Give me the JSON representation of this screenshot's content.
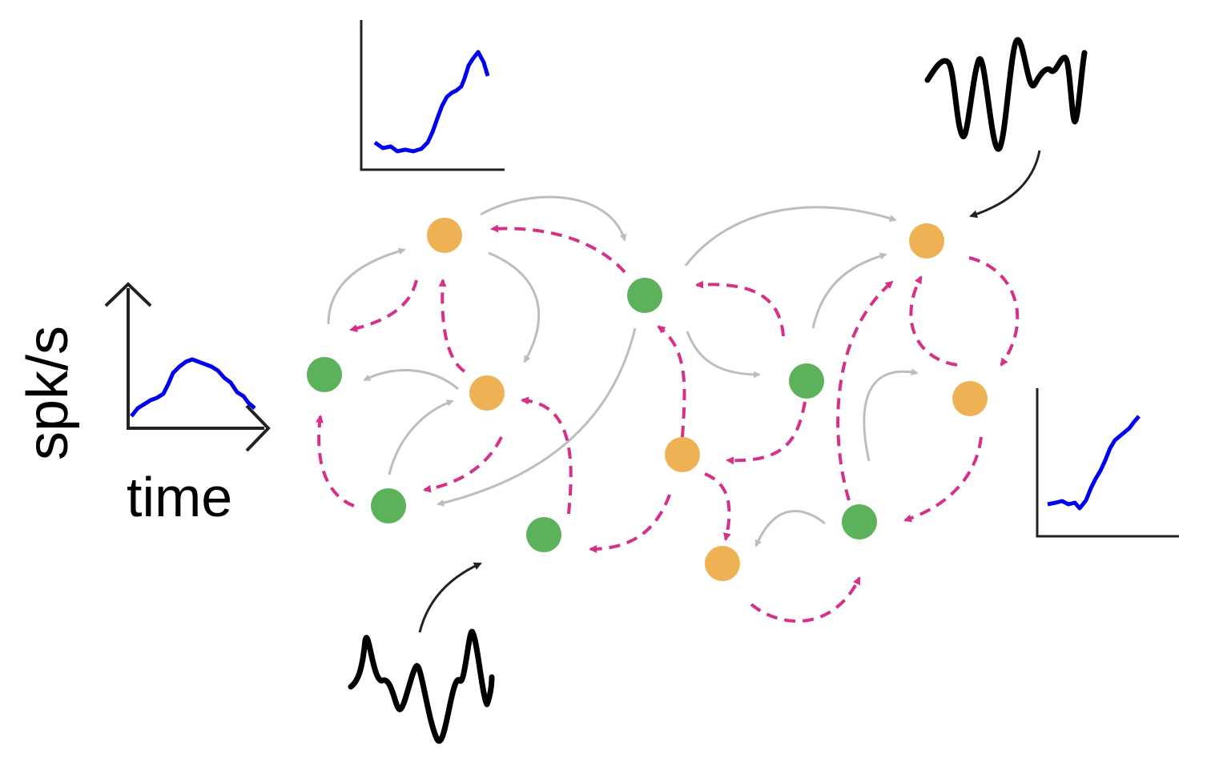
{
  "labels": {
    "y_axis": "spk/s",
    "x_axis": "time"
  },
  "colors": {
    "excitatory_node": "#5cb25a",
    "inhibitory_node": "#eeb255",
    "feedback_connection": "#d63089",
    "feedforward_connection": "#bdbdbd",
    "rate_trace": "#0000ee",
    "input_signal": "#000000"
  },
  "legend_plot": {
    "description_icon": "firing-rate-axes-icon"
  }
}
